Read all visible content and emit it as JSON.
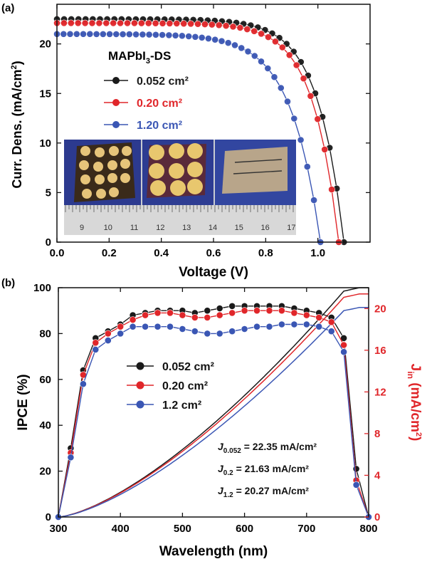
{
  "colors": {
    "black": "#1a1a1a",
    "red": "#e0262a",
    "blue": "#3a56b4"
  },
  "chart_data": [
    {
      "panel_label": "(a)",
      "type": "line",
      "xlabel": "Voltage (V)",
      "ylabel": "Curr. Dens. (mA/cm²)",
      "xlim": [
        0,
        1.2
      ],
      "ylim": [
        0,
        24
      ],
      "xticks": [
        0.0,
        0.2,
        0.4,
        0.6,
        0.8,
        1.0
      ],
      "xtick_labels": [
        "0.0",
        "0.2",
        "0.4",
        "0.6",
        "0.8",
        "1.0"
      ],
      "yticks": [
        0,
        5,
        10,
        15,
        20
      ],
      "ytick_labels": [
        "0",
        "5",
        "10",
        "15",
        "20"
      ],
      "legend_title": "MAPbI₃-DS",
      "legend_placement": "upper-left",
      "inset_photo_ruler_labels": [
        "9",
        "10",
        "11",
        "12",
        "13",
        "14",
        "15",
        "16",
        "17"
      ],
      "series": [
        {
          "name": "0.052 cm²",
          "color": "#1a1a1a",
          "jsc": 22.5,
          "voc": 1.1,
          "knee": 11
        },
        {
          "name": "0.20 cm²",
          "color": "#e0262a",
          "jsc": 22.1,
          "voc": 1.08,
          "knee": 11
        },
        {
          "name": "1.20 cm²",
          "color": "#3a56b4",
          "jsc": 21.0,
          "voc": 1.01,
          "knee": 9
        }
      ]
    },
    {
      "panel_label": "(b)",
      "type": "line",
      "xlabel": "Wavelength (nm)",
      "ylabel": "IPCE (%)",
      "y2label": "Jᵢₙ (mA/cm²)",
      "xlim": [
        300,
        800
      ],
      "ylim": [
        0,
        100
      ],
      "y2lim": [
        0,
        22
      ],
      "xticks": [
        300,
        400,
        500,
        600,
        700,
        800
      ],
      "xtick_labels": [
        "300",
        "400",
        "500",
        "600",
        "700",
        "800"
      ],
      "yticks": [
        0,
        20,
        40,
        60,
        80,
        100
      ],
      "ytick_labels": [
        "0",
        "20",
        "40",
        "60",
        "80",
        "100"
      ],
      "y2ticks": [
        0,
        4,
        8,
        12,
        16,
        20
      ],
      "y2tick_labels": [
        "0",
        "4",
        "8",
        "12",
        "16",
        "20"
      ],
      "legend_placement": "center",
      "x": [
        300,
        320,
        340,
        360,
        380,
        400,
        420,
        440,
        460,
        480,
        500,
        520,
        540,
        560,
        580,
        600,
        620,
        640,
        660,
        680,
        700,
        720,
        740,
        760,
        780,
        800
      ],
      "series": [
        {
          "name": "0.052 cm²",
          "color": "#1a1a1a",
          "ipce": [
            0,
            30,
            64,
            78,
            81,
            84,
            88,
            89,
            90,
            90,
            90,
            89,
            90,
            91,
            92,
            92,
            92,
            92,
            92,
            91,
            90,
            89,
            87,
            78,
            21,
            0
          ]
        },
        {
          "name": "0.20 cm²",
          "color": "#e0262a",
          "ipce": [
            0,
            28,
            62,
            76,
            80,
            83,
            86,
            88,
            89,
            89,
            88,
            87,
            87,
            88,
            89,
            90,
            90,
            90,
            90,
            89,
            88,
            87,
            85,
            75,
            16,
            0
          ]
        },
        {
          "name": "1.2 cm²",
          "color": "#3a56b4",
          "ipce": [
            0,
            26,
            58,
            73,
            77,
            80,
            83,
            83,
            83,
            83,
            82,
            81,
            80,
            80,
            81,
            82,
            83,
            83,
            84,
            84,
            84,
            83,
            81,
            72,
            14,
            0
          ]
        }
      ],
      "integrated_jsc": [
        {
          "name": "0.052 cm²",
          "color": "#1a1a1a",
          "final": 22.0
        },
        {
          "name": "0.20 cm²",
          "color": "#e0262a",
          "final": 21.4
        },
        {
          "name": "1.2 cm²",
          "color": "#3a56b4",
          "final": 20.1
        }
      ],
      "annotations": [
        {
          "sub": "0.052",
          "value": " = 22.35 mA/cm²"
        },
        {
          "sub": "0.2",
          "value": " = 21.63 mA/cm²"
        },
        {
          "sub": "1.2",
          "value": " = 20.27 mA/cm²"
        }
      ]
    }
  ]
}
